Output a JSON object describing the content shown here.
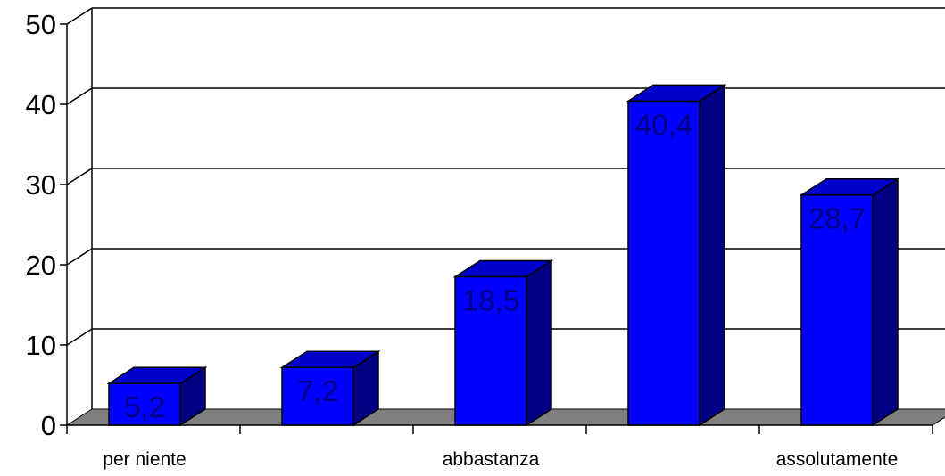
{
  "chart_data": {
    "type": "bar",
    "categories": [
      "per niente",
      "",
      "abbastanza",
      "",
      "assolutamente"
    ],
    "values": [
      5.2,
      7.2,
      18.5,
      40.4,
      28.7
    ],
    "data_labels": [
      "5,2",
      "7,2",
      "18,5",
      "40,4",
      "28,7"
    ],
    "y_ticks": [
      "0",
      "10",
      "20",
      "30",
      "40",
      "50"
    ],
    "ylim": [
      0,
      50
    ],
    "grid": true,
    "three_d": true,
    "colors": {
      "bar_front": "#0000ff",
      "bar_top": "#0000cc",
      "bar_side": "#000080",
      "floor": "#808080",
      "gridline": "#000000",
      "text": "#000000",
      "data_label": "#000080"
    }
  }
}
